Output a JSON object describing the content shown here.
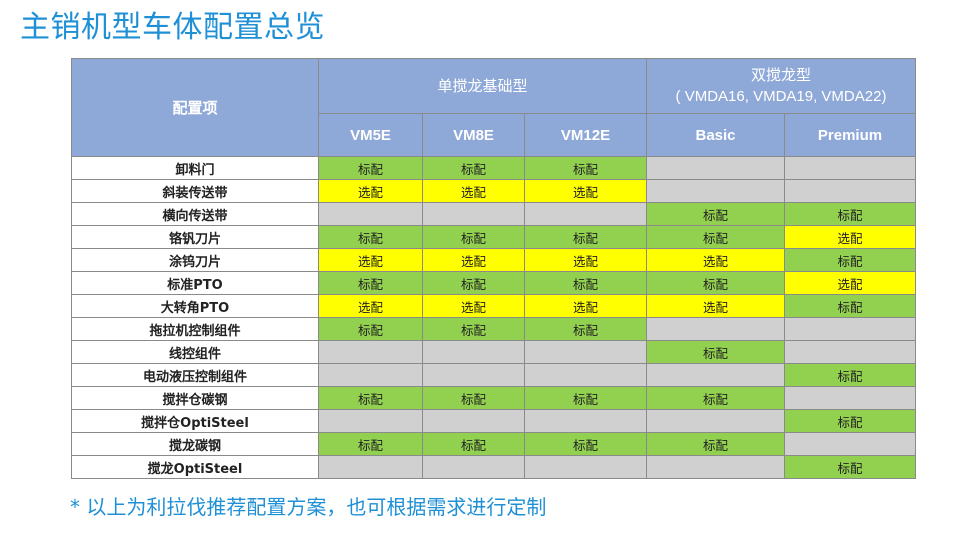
{
  "title": "主销机型车体配置总览",
  "table": {
    "corner_label": "配置项",
    "group_single": "单搅龙基础型",
    "group_double_line1": "双搅龙型",
    "group_double_line2": "( VMDA16, VMDA19, VMDA22)",
    "models": [
      "VM5E",
      "VM8E",
      "VM12E",
      "Basic",
      "Premium"
    ],
    "rows": [
      {
        "name": "卸料门",
        "cells": [
          {
            "t": "标配",
            "s": "std"
          },
          {
            "t": "标配",
            "s": "std"
          },
          {
            "t": "标配",
            "s": "std"
          },
          {
            "t": "",
            "s": "na"
          },
          {
            "t": "",
            "s": "na"
          }
        ]
      },
      {
        "name": "斜装传送带",
        "cells": [
          {
            "t": "选配",
            "s": "opt"
          },
          {
            "t": "选配",
            "s": "opt"
          },
          {
            "t": "选配",
            "s": "opt"
          },
          {
            "t": "",
            "s": "na"
          },
          {
            "t": "",
            "s": "na"
          }
        ]
      },
      {
        "name": "横向传送带",
        "cells": [
          {
            "t": "",
            "s": "na"
          },
          {
            "t": "",
            "s": "na"
          },
          {
            "t": "",
            "s": "na"
          },
          {
            "t": "标配",
            "s": "std"
          },
          {
            "t": "标配",
            "s": "std"
          }
        ]
      },
      {
        "name": "铬钒刀片",
        "cells": [
          {
            "t": "标配",
            "s": "std"
          },
          {
            "t": "标配",
            "s": "std"
          },
          {
            "t": "标配",
            "s": "std"
          },
          {
            "t": "标配",
            "s": "std"
          },
          {
            "t": "选配",
            "s": "opt"
          }
        ]
      },
      {
        "name": "涂钨刀片",
        "cells": [
          {
            "t": "选配",
            "s": "opt"
          },
          {
            "t": "选配",
            "s": "opt"
          },
          {
            "t": "选配",
            "s": "opt"
          },
          {
            "t": "选配",
            "s": "opt"
          },
          {
            "t": "标配",
            "s": "std"
          }
        ]
      },
      {
        "name": "标准PTO",
        "cells": [
          {
            "t": "标配",
            "s": "std"
          },
          {
            "t": "标配",
            "s": "std"
          },
          {
            "t": "标配",
            "s": "std"
          },
          {
            "t": "标配",
            "s": "std"
          },
          {
            "t": "选配",
            "s": "opt"
          }
        ]
      },
      {
        "name": "大转角PTO",
        "cells": [
          {
            "t": "选配",
            "s": "opt"
          },
          {
            "t": "选配",
            "s": "opt"
          },
          {
            "t": "选配",
            "s": "opt"
          },
          {
            "t": "选配",
            "s": "opt"
          },
          {
            "t": "标配",
            "s": "std"
          }
        ]
      },
      {
        "name": "拖拉机控制组件",
        "cells": [
          {
            "t": "标配",
            "s": "std"
          },
          {
            "t": "标配",
            "s": "std"
          },
          {
            "t": "标配",
            "s": "std"
          },
          {
            "t": "",
            "s": "na"
          },
          {
            "t": "",
            "s": "na"
          }
        ]
      },
      {
        "name": "线控组件",
        "cells": [
          {
            "t": "",
            "s": "na"
          },
          {
            "t": "",
            "s": "na"
          },
          {
            "t": "",
            "s": "na"
          },
          {
            "t": "标配",
            "s": "std"
          },
          {
            "t": "",
            "s": "na"
          }
        ]
      },
      {
        "name": "电动液压控制组件",
        "cells": [
          {
            "t": "",
            "s": "na"
          },
          {
            "t": "",
            "s": "na"
          },
          {
            "t": "",
            "s": "na"
          },
          {
            "t": "",
            "s": "na"
          },
          {
            "t": "标配",
            "s": "std"
          }
        ]
      },
      {
        "name": "搅拌仓碳钢",
        "cells": [
          {
            "t": "标配",
            "s": "std"
          },
          {
            "t": "标配",
            "s": "std"
          },
          {
            "t": "标配",
            "s": "std"
          },
          {
            "t": "标配",
            "s": "std"
          },
          {
            "t": "",
            "s": "na"
          }
        ]
      },
      {
        "name": "搅拌仓OptiSteel",
        "cells": [
          {
            "t": "",
            "s": "na"
          },
          {
            "t": "",
            "s": "na"
          },
          {
            "t": "",
            "s": "na"
          },
          {
            "t": "",
            "s": "na"
          },
          {
            "t": "标配",
            "s": "std"
          }
        ]
      },
      {
        "name": "搅龙碳钢",
        "cells": [
          {
            "t": "标配",
            "s": "std"
          },
          {
            "t": "标配",
            "s": "std"
          },
          {
            "t": "标配",
            "s": "std"
          },
          {
            "t": "标配",
            "s": "std"
          },
          {
            "t": "",
            "s": "na"
          }
        ]
      },
      {
        "name": "搅龙OptiSteel",
        "cells": [
          {
            "t": "",
            "s": "na"
          },
          {
            "t": "",
            "s": "na"
          },
          {
            "t": "",
            "s": "na"
          },
          {
            "t": "",
            "s": "na"
          },
          {
            "t": "标配",
            "s": "std"
          }
        ]
      }
    ]
  },
  "colors": {
    "title": "#1f90d6",
    "header_bg": "#8ea8d8",
    "standard": "#92d050",
    "optional": "#ffff00",
    "not_available": "#d0d0d0"
  },
  "footnote": "* 以上为利拉伐推荐配置方案，也可根据需求进行定制"
}
